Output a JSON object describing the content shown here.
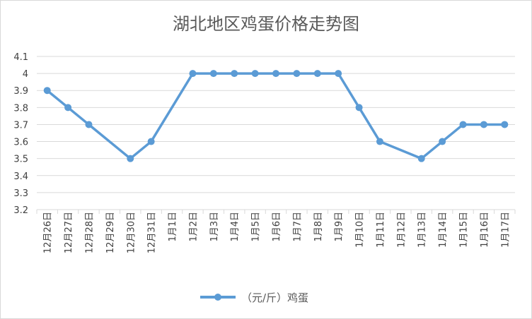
{
  "chart_data": {
    "type": "line",
    "title": "湖北地区鸡蛋价格走势图",
    "xlabel": "",
    "ylabel": "",
    "categories": [
      "12月26日",
      "12月27日",
      "12月28日",
      "12月29日",
      "12月30日",
      "12月31日",
      "1月1日",
      "1月2日",
      "1月3日",
      "1月4日",
      "1月5日",
      "1月6日",
      "1月7日",
      "1月8日",
      "1月9日",
      "1月10日",
      "1月11日",
      "1月12日",
      "1月13日",
      "1月14日",
      "1月15日",
      "1月16日",
      "1月17日"
    ],
    "series": [
      {
        "name": "（元/斤）鸡蛋",
        "color": "#5b9bd5",
        "values": [
          3.9,
          3.8,
          3.7,
          null,
          3.5,
          3.6,
          null,
          4.0,
          4.0,
          4.0,
          4.0,
          4.0,
          4.0,
          4.0,
          4.0,
          3.8,
          3.6,
          null,
          3.5,
          3.6,
          3.7,
          3.7,
          3.7
        ]
      }
    ],
    "ylim": [
      3.2,
      4.1
    ],
    "yticks": [
      "3.2",
      "3.3",
      "3.4",
      "3.5",
      "3.6",
      "3.7",
      "3.8",
      "3.9",
      "4",
      "4.1"
    ],
    "grid": true,
    "legend": "bottom"
  }
}
